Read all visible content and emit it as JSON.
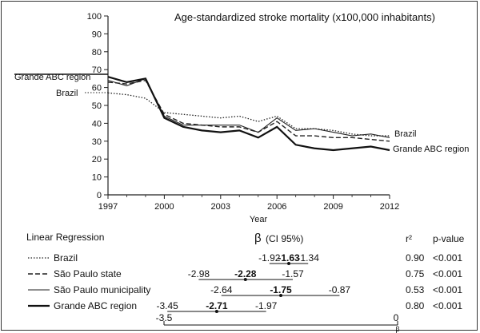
{
  "chart_data": {
    "type": "line",
    "title": "Age-standardized stroke mortality (x100,000 inhabitants)",
    "xlabel": "Year",
    "ylabel": "",
    "x": [
      1997,
      1998,
      1999,
      2000,
      2001,
      2002,
      2003,
      2004,
      2005,
      2006,
      2007,
      2008,
      2009,
      2010,
      2011,
      2012
    ],
    "x_ticks": [
      1997,
      2000,
      2003,
      2006,
      2009,
      2012
    ],
    "y_ticks": [
      0,
      10,
      20,
      30,
      40,
      50,
      60,
      70,
      80,
      90,
      100
    ],
    "ylim": [
      0,
      100
    ],
    "xlim": [
      1997,
      2012
    ],
    "series": [
      {
        "name": "Brazil",
        "style": "dotted",
        "values": [
          57,
          56,
          54,
          46,
          45,
          44,
          43,
          44,
          41,
          44,
          37,
          37,
          36,
          34,
          33,
          33
        ]
      },
      {
        "name": "São Paulo state",
        "style": "dashed",
        "values": [
          63,
          62,
          64,
          45,
          40,
          39,
          38,
          38,
          35,
          41,
          33,
          33,
          32,
          32,
          31,
          30
        ]
      },
      {
        "name": "São Paulo municipality",
        "style": "thin-solid",
        "values": [
          64,
          61,
          65,
          44,
          39,
          39,
          39,
          39,
          35,
          43,
          36,
          37,
          35,
          33,
          34,
          32
        ]
      },
      {
        "name": "Grande ABC region",
        "style": "thick-solid",
        "values": [
          66,
          63,
          65,
          43,
          38,
          36,
          35,
          36,
          32,
          38,
          28,
          26,
          25,
          26,
          27,
          25
        ]
      }
    ],
    "labels": {
      "left_top": "Grande ABC region",
      "left_bottom": "Brazil",
      "right_top": "Brazil",
      "right_bottom": "Grande ABC region"
    }
  },
  "regression": {
    "heading": "Linear Regression",
    "beta_header": "β",
    "ci_header": "(CI 95%)",
    "r2_header": "r²",
    "p_header": "p-value",
    "axis_min": -3.5,
    "axis_max": 0,
    "axis_label": "β",
    "axis_min_label": "-3.5",
    "axis_max_label": "0",
    "rows": [
      {
        "name": "Brazil",
        "style": "dotted",
        "lower": -1.92,
        "beta": -1.63,
        "upper": -1.34,
        "lower_label": "-1.92",
        "beta_label": "-1.63",
        "upper_label": "-1.34",
        "r2": "0.90",
        "p": "<0.001"
      },
      {
        "name": "São Paulo state",
        "style": "dashed",
        "lower": -2.98,
        "beta": -2.28,
        "upper": -1.57,
        "lower_label": "-2.98",
        "beta_label": "-2.28",
        "upper_label": "-1.57",
        "r2": "0.75",
        "p": "<0.001"
      },
      {
        "name": "São Paulo municipality",
        "style": "thin-solid",
        "lower": -2.64,
        "beta": -1.75,
        "upper": -0.87,
        "lower_label": "-2.64",
        "beta_label": "-1.75",
        "upper_label": "-0.87",
        "r2": "0.53",
        "p": "<0.001"
      },
      {
        "name": "Grande ABC region",
        "style": "thick-solid",
        "lower": -3.45,
        "beta": -2.71,
        "upper": -1.97,
        "lower_label": "-3.45",
        "beta_label": "-2.71",
        "upper_label": "-1.97",
        "r2": "0.80",
        "p": "<0.001"
      }
    ]
  }
}
